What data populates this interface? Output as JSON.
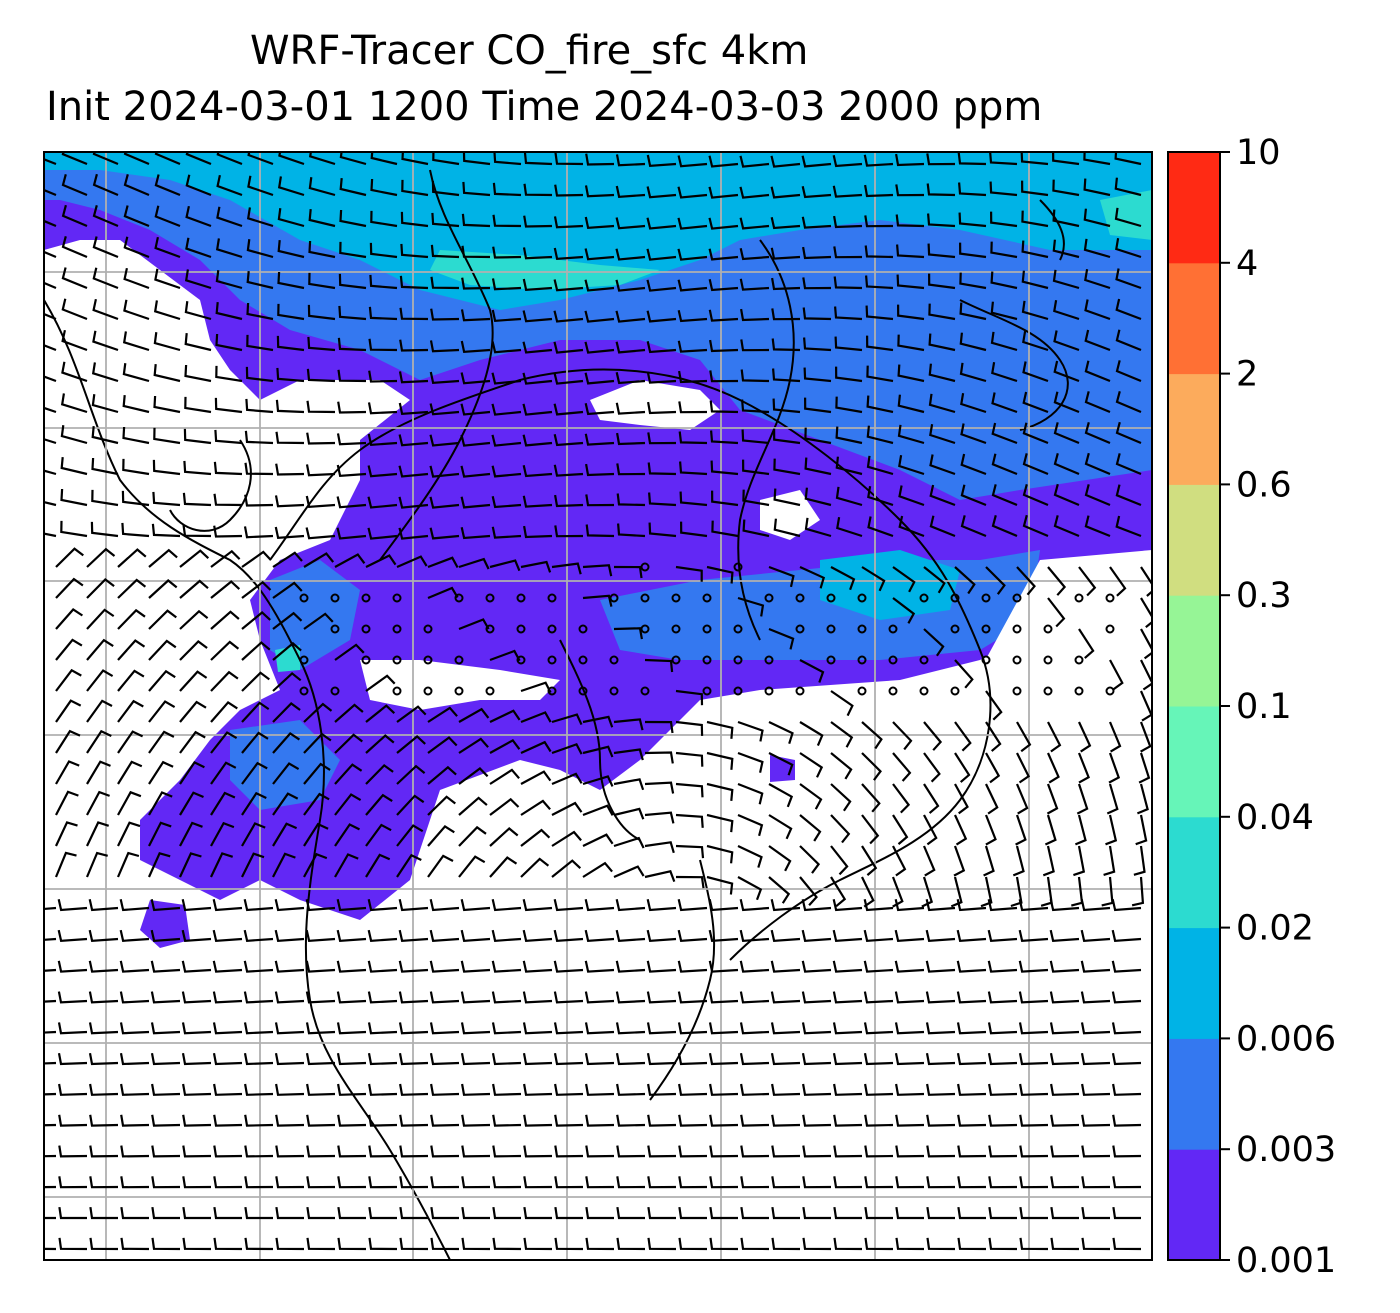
{
  "title": {
    "line1": "WRF-Tracer CO_fire_sfc 4km",
    "line2": "Init 2024-03-01 1200 Time 2024-03-03 2000 ppm"
  },
  "colorbar": {
    "levels": [
      "0.001",
      "0.003",
      "0.006",
      "0.02",
      "0.04",
      "0.1",
      "0.3",
      "0.6",
      "2",
      "4",
      "10"
    ],
    "colors": [
      "#6228f5",
      "#3478f0",
      "#00b3e6",
      "#2cdbd0",
      "#66f5b8",
      "#96f596",
      "#d0de80",
      "#fcab5c",
      "#ff7034",
      "#ff2a14"
    ]
  },
  "map": {
    "background": "#ffffff",
    "gridline_color": "#b0b0b0",
    "coastline_color": "#000000",
    "barb_color": "#000000"
  }
}
